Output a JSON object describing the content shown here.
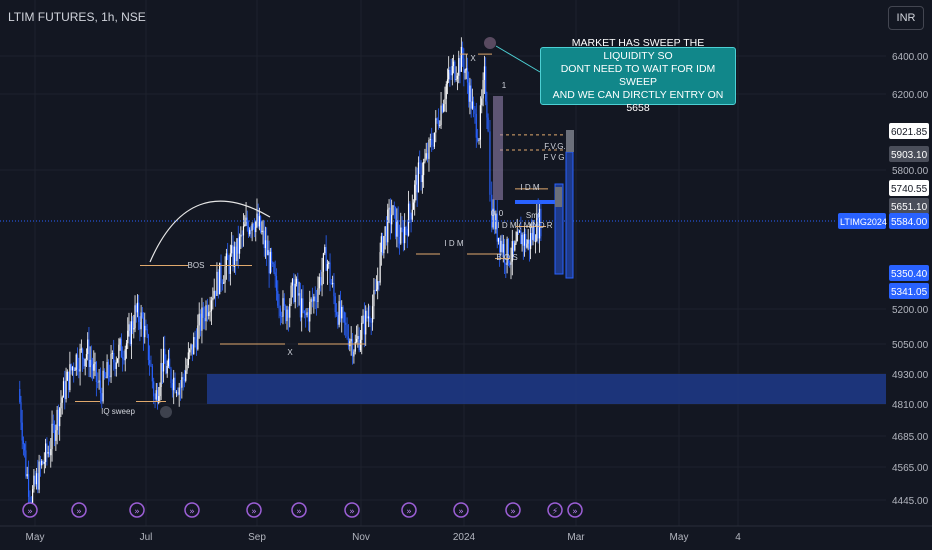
{
  "header": {
    "title": "LTIM FUTURES, 1h, NSE",
    "currency": "INR"
  },
  "note": {
    "lines": [
      "MARKET HAS SWEEP THE LIQUIDITY SO",
      "DONT NEED TO WAIT FOR IDM SWEEP",
      "AND WE CAN DIRCTLY ENTRY ON 5658"
    ]
  },
  "colors": {
    "background": "#131722",
    "candle": "#2962ff",
    "candle_light": "#ffffff",
    "annotation": "#e0a96d",
    "zone": "#1e3a8a",
    "note_bg": "#11878a"
  },
  "chart_data": {
    "type": "candlestick",
    "symbol": "LTIM FUTURES",
    "timeframe": "1h",
    "exchange": "NSE",
    "ylim": [
      4380,
      6560
    ],
    "y_ticks": [
      "6400.00",
      "6200.00",
      "5800.00",
      "5200.00",
      "5050.00",
      "4930.00",
      "4810.00",
      "4685.00",
      "4565.00",
      "4445.00"
    ],
    "x_ticks": [
      "May",
      "Jul",
      "Sep",
      "Nov",
      "2024",
      "Mar",
      "May",
      "4"
    ],
    "price_path": [
      {
        "x": "Apr 28",
        "y": 4870
      },
      {
        "x": "May 2",
        "y": 4560
      },
      {
        "x": "May 5",
        "y": 4450
      },
      {
        "x": "May 10",
        "y": 4560
      },
      {
        "x": "May 15",
        "y": 4640
      },
      {
        "x": "May 22",
        "y": 4840
      },
      {
        "x": "May 29",
        "y": 4990
      },
      {
        "x": "Jun 5",
        "y": 5020
      },
      {
        "x": "Jun 9",
        "y": 4920
      },
      {
        "x": "Jun 12",
        "y": 4860
      },
      {
        "x": "Jun 20",
        "y": 5000
      },
      {
        "x": "Jun 27",
        "y": 5060
      },
      {
        "x": "Jul 1",
        "y": 5180
      },
      {
        "x": "Jul 5",
        "y": 5150
      },
      {
        "x": "Jul 9",
        "y": 4990
      },
      {
        "x": "Jul 12",
        "y": 4820
      },
      {
        "x": "Jul 16",
        "y": 4980
      },
      {
        "x": "Jul 20",
        "y": 4930
      },
      {
        "x": "Jul 26",
        "y": 4880
      },
      {
        "x": "Jul 31",
        "y": 5000
      },
      {
        "x": "Aug 6",
        "y": 5140
      },
      {
        "x": "Aug 12",
        "y": 5270
      },
      {
        "x": "Aug 18",
        "y": 5360
      },
      {
        "x": "Aug 26",
        "y": 5450
      },
      {
        "x": "Aug 31",
        "y": 5560
      },
      {
        "x": "Sep 4",
        "y": 5600
      },
      {
        "x": "Sep 8",
        "y": 5540
      },
      {
        "x": "Sep 12",
        "y": 5430
      },
      {
        "x": "Sep 16",
        "y": 5300
      },
      {
        "x": "Sep 21",
        "y": 5180
      },
      {
        "x": "Sep 27",
        "y": 5300
      },
      {
        "x": "Oct 2",
        "y": 5150
      },
      {
        "x": "Oct 8",
        "y": 5260
      },
      {
        "x": "Oct 14",
        "y": 5430
      },
      {
        "x": "Oct 19",
        "y": 5220
      },
      {
        "x": "Oct 24",
        "y": 5120
      },
      {
        "x": "Oct 30",
        "y": 5040
      },
      {
        "x": "Nov 4",
        "y": 5140
      },
      {
        "x": "Nov 10",
        "y": 5240
      },
      {
        "x": "Nov 14",
        "y": 5500
      },
      {
        "x": "Nov 19",
        "y": 5620
      },
      {
        "x": "Nov 24",
        "y": 5500
      },
      {
        "x": "Nov 29",
        "y": 5620
      },
      {
        "x": "Dec 3",
        "y": 5760
      },
      {
        "x": "Dec 8",
        "y": 5850
      },
      {
        "x": "Dec 14",
        "y": 6050
      },
      {
        "x": "Dec 19",
        "y": 6250
      },
      {
        "x": "Dec 23",
        "y": 6330
      },
      {
        "x": "Dec 28",
        "y": 6390
      },
      {
        "x": "Jan 1",
        "y": 6200
      },
      {
        "x": "Jan 3",
        "y": 6080
      },
      {
        "x": "Jan 6",
        "y": 6000
      },
      {
        "x": "Jan 9",
        "y": 6280
      },
      {
        "x": "Jan 11",
        "y": 6060
      },
      {
        "x": "Jan 12",
        "y": 5680
      },
      {
        "x": "Jan 13",
        "y": 5620
      },
      {
        "x": "Jan 16",
        "y": 5540
      },
      {
        "x": "Jan 20",
        "y": 5450
      },
      {
        "x": "Jan 25",
        "y": 5430
      },
      {
        "x": "Jan 29",
        "y": 5520
      },
      {
        "x": "Feb 2",
        "y": 5480
      },
      {
        "x": "Feb 6",
        "y": 5560
      },
      {
        "x": "Feb 9",
        "y": 5584
      }
    ],
    "levels": {
      "current": {
        "label": "LTIMG2024",
        "value": "5584.00"
      },
      "price_tags": [
        "6021.85",
        "5903.10",
        "5740.55",
        "5651.10",
        "5350.40",
        "5341.05"
      ]
    },
    "annotations": [
      "BOS",
      "BOS",
      "X",
      "X",
      "IQ sweep",
      "IDM",
      "IDM",
      "F.V.G.",
      "F V G",
      "Smt",
      "I D M ( MINO R",
      "1",
      "0",
      "0"
    ],
    "demand_zone": {
      "from": 4930,
      "to": 4810
    }
  }
}
